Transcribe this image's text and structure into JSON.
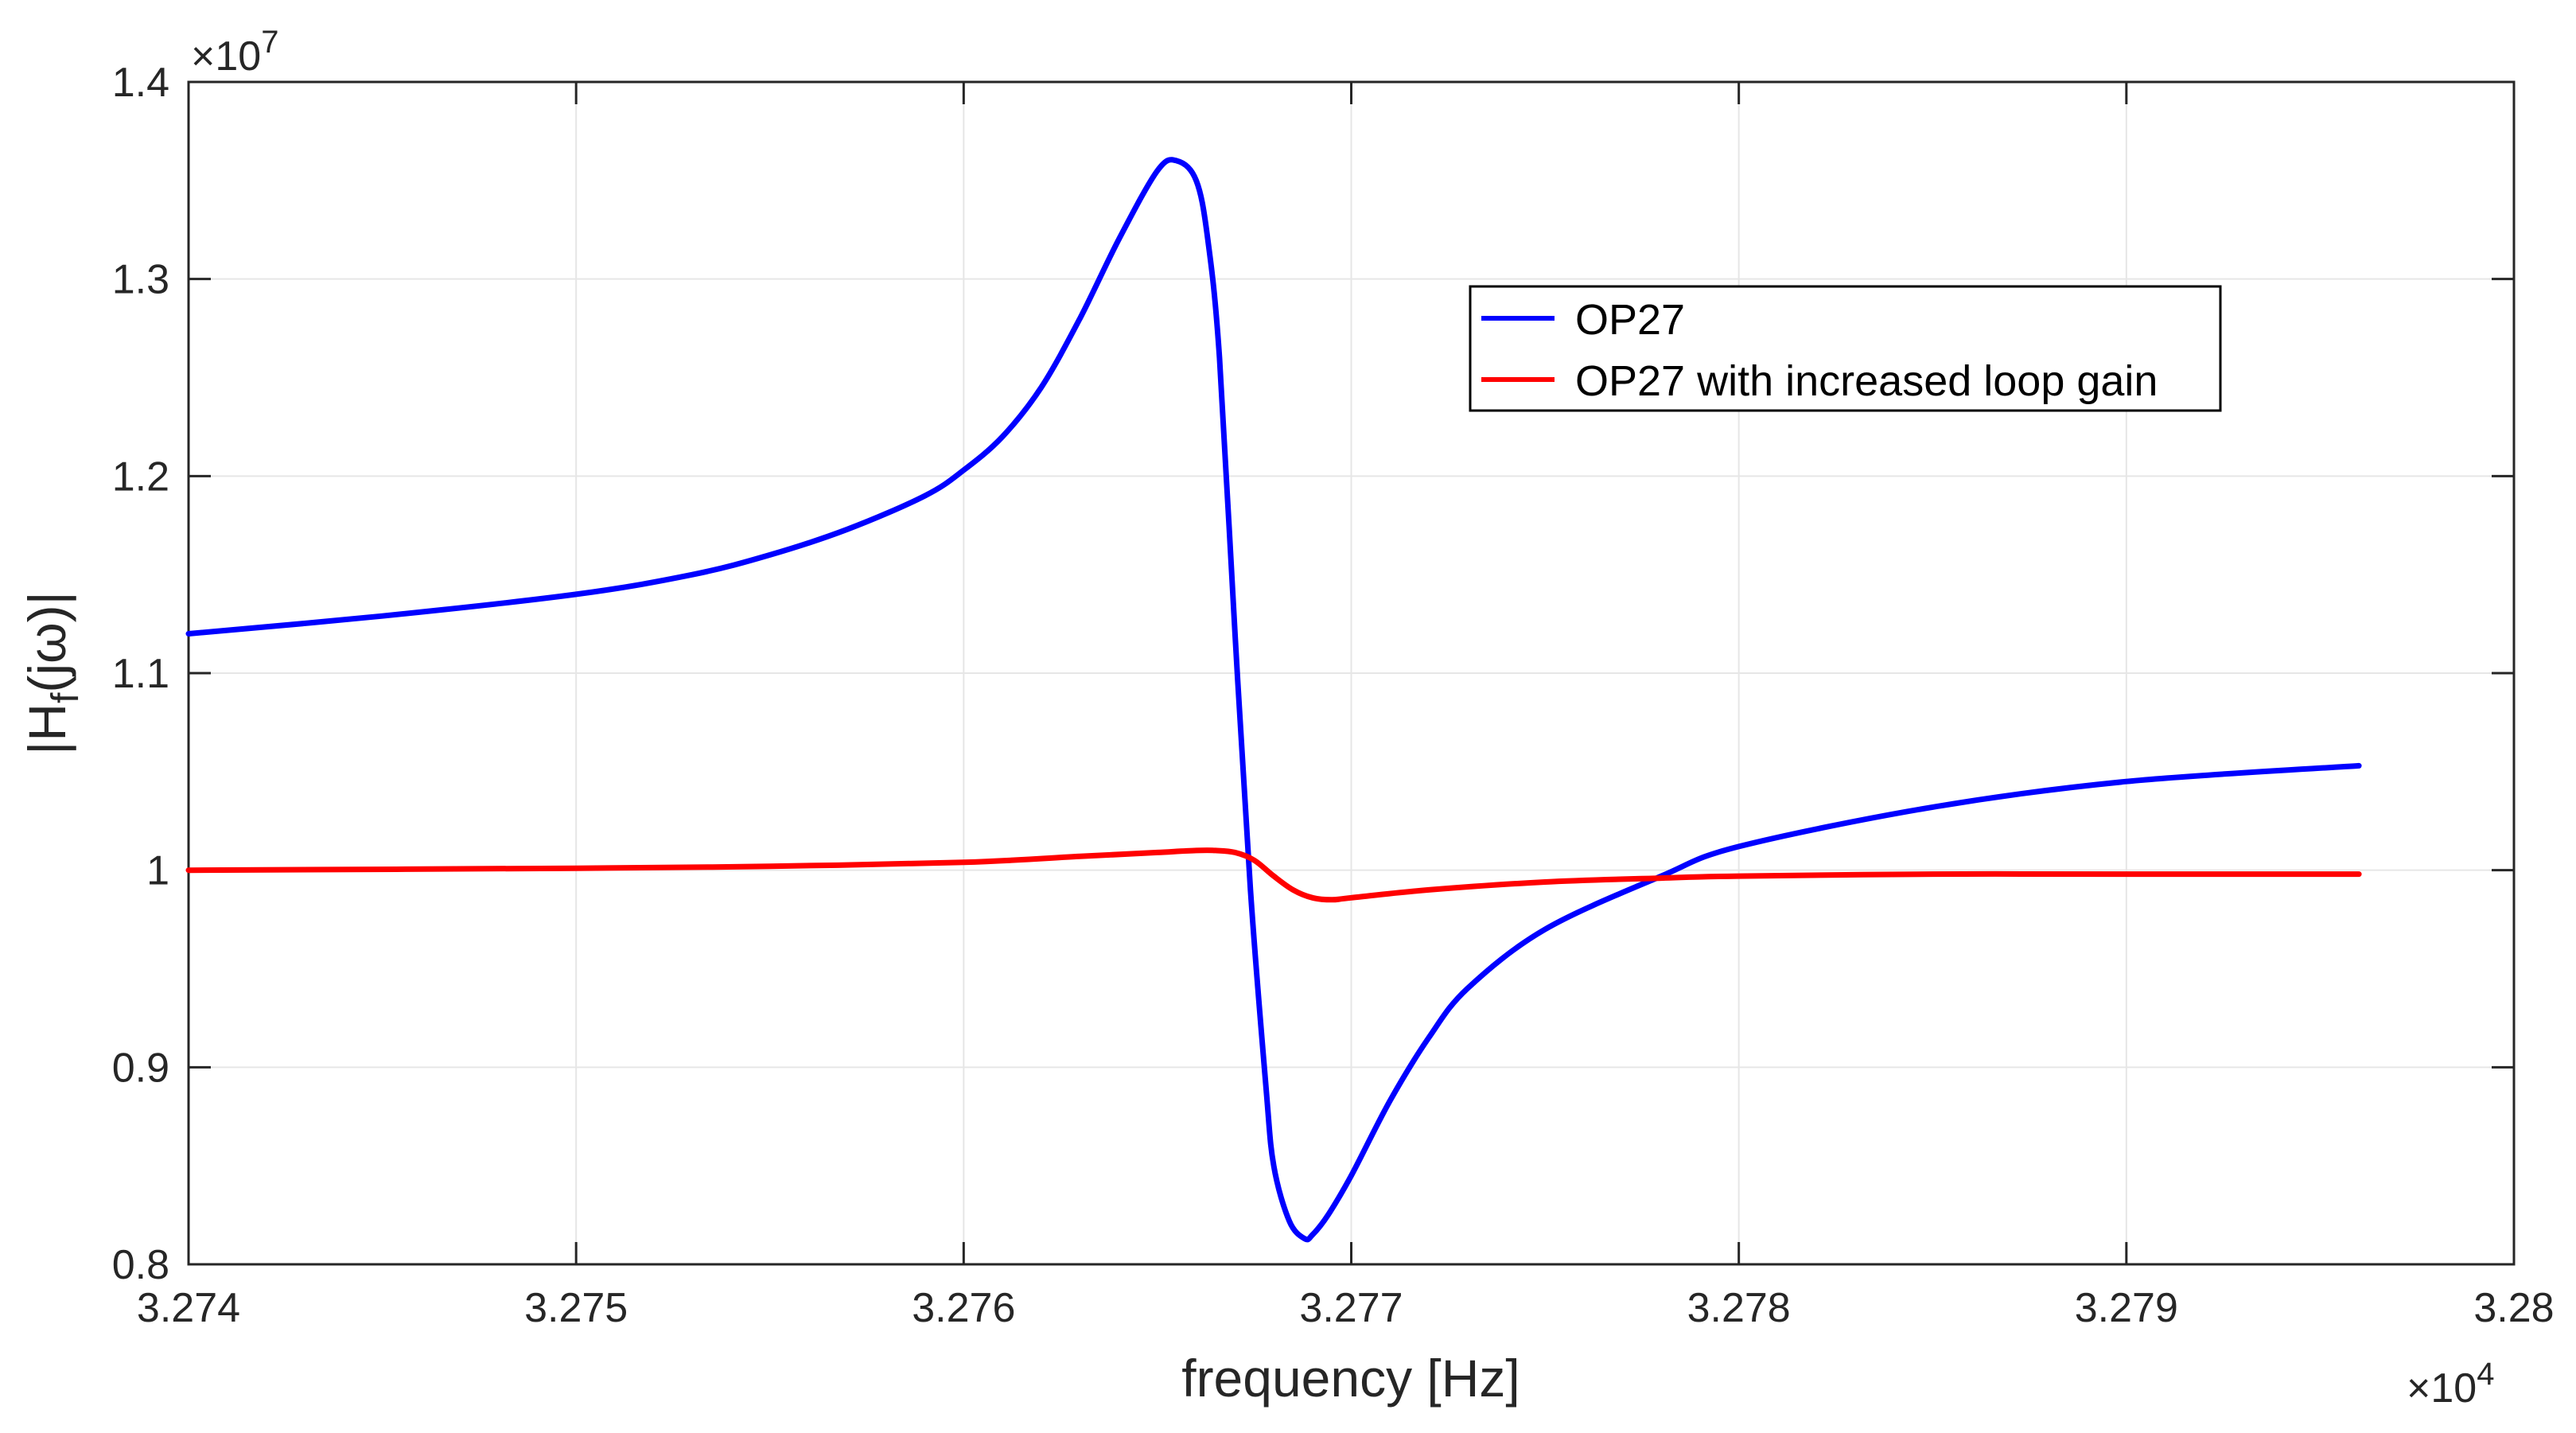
{
  "chart_data": {
    "type": "line",
    "xlabel": "frequency [Hz]",
    "ylabel_main": "|H",
    "ylabel_sub": "f",
    "ylabel_tail": "(jω)|",
    "x_exponent_prefix": "×10",
    "x_exponent_power": "4",
    "y_exponent_prefix": "×10",
    "y_exponent_power": "7",
    "xlim": [
      3.274,
      3.28
    ],
    "ylim": [
      0.8,
      1.4
    ],
    "xticks": [
      3.274,
      3.275,
      3.276,
      3.277,
      3.278,
      3.279,
      3.28
    ],
    "xtick_labels": [
      "3.274",
      "3.275",
      "3.276",
      "3.277",
      "3.278",
      "3.279",
      "3.28"
    ],
    "yticks": [
      0.8,
      0.9,
      1.0,
      1.1,
      1.2,
      1.3,
      1.4
    ],
    "ytick_labels": [
      "0.8",
      "0.9",
      "1",
      "1.1",
      "1.2",
      "1.3",
      "1.4"
    ],
    "grid": true,
    "legend_position": "upper-right",
    "series": [
      {
        "name": "OP27",
        "color": "#0000ff",
        "x": [
          3.274,
          3.2745,
          3.275,
          3.2753,
          3.2755,
          3.2757,
          3.2759,
          3.276,
          3.2761,
          3.2762,
          3.2763,
          3.2764,
          3.2765,
          3.27655,
          3.2766,
          3.27663,
          3.27666,
          3.2767,
          3.27674,
          3.27678,
          3.2768,
          3.27684,
          3.27688,
          3.2769,
          3.27694,
          3.277,
          3.2771,
          3.2772,
          3.2773,
          3.2775,
          3.2778,
          3.278,
          3.2785,
          3.279,
          3.2796
        ],
        "y": [
          1.12,
          1.129,
          1.14,
          1.15,
          1.16,
          1.173,
          1.19,
          1.203,
          1.22,
          1.245,
          1.28,
          1.32,
          1.355,
          1.36,
          1.35,
          1.32,
          1.26,
          1.12,
          0.99,
          0.89,
          0.85,
          0.822,
          0.813,
          0.815,
          0.825,
          0.845,
          0.883,
          0.915,
          0.94,
          0.97,
          0.997,
          1.012,
          1.032,
          1.045,
          1.053
        ]
      },
      {
        "name": "OP27 with increased loop gain",
        "color": "#ff0000",
        "x": [
          3.274,
          3.275,
          3.2755,
          3.276,
          3.2763,
          3.2765,
          3.2766,
          3.27665,
          3.2767,
          3.27675,
          3.2768,
          3.27685,
          3.2769,
          3.27695,
          3.277,
          3.2772,
          3.2775,
          3.2778,
          3.278,
          3.2785,
          3.279,
          3.2796
        ],
        "y": [
          1.0,
          1.001,
          1.002,
          1.004,
          1.007,
          1.009,
          1.01,
          1.01,
          1.009,
          1.005,
          0.997,
          0.99,
          0.986,
          0.985,
          0.986,
          0.99,
          0.994,
          0.996,
          0.997,
          0.998,
          0.998,
          0.998
        ]
      }
    ]
  }
}
